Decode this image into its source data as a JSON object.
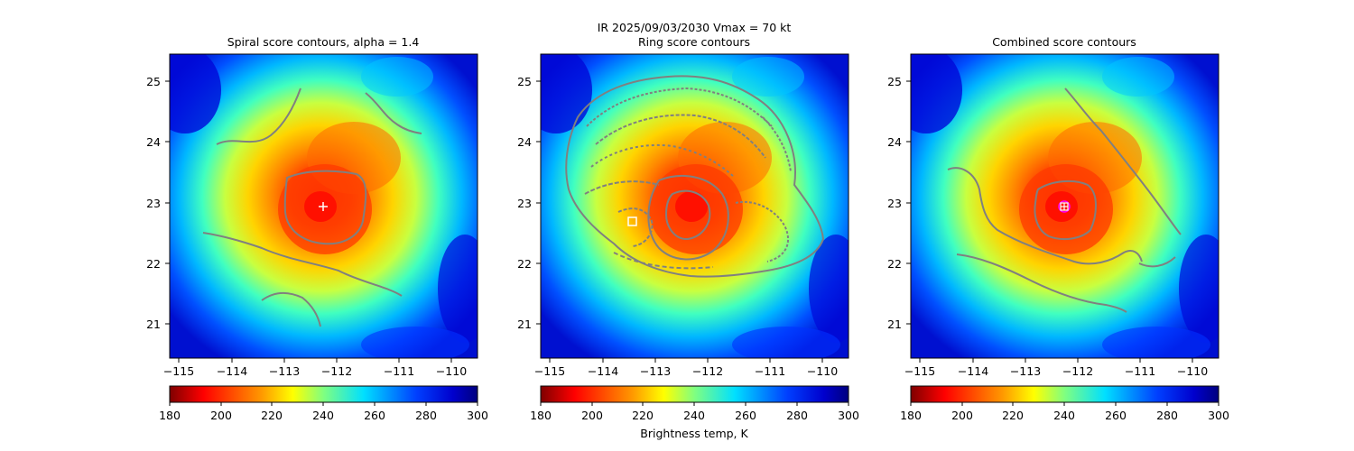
{
  "figure": {
    "suptitle": "IR  2025/09/03/2030    Vmax = 70 kt",
    "colorbar_label": "Brightness temp, K"
  },
  "chart_data": [
    {
      "type": "heatmap",
      "title": "Spiral score contours, alpha =  1.4",
      "xlim": [
        -115.2,
        -109.7
      ],
      "ylim": [
        20.4,
        25.45
      ],
      "xticks": [
        "−115",
        "−114",
        "−113",
        "−112",
        "−111",
        "−110"
      ],
      "yticks": [
        "21",
        "22",
        "23",
        "24",
        "25"
      ],
      "colorbar": {
        "vmin": 180,
        "vmax": 300,
        "ticks": [
          "180",
          "200",
          "220",
          "240",
          "260",
          "280",
          "300"
        ],
        "cmap": "jet_r"
      },
      "center_marker": {
        "symbol": "plus",
        "lon": -112.4,
        "lat": 22.9,
        "color": "#ffffff"
      },
      "contour_color": "#808080"
    },
    {
      "type": "heatmap",
      "title": "Ring score contours",
      "xlim": [
        -115.2,
        -109.7
      ],
      "ylim": [
        20.4,
        25.45
      ],
      "xticks": [
        "−115",
        "−114",
        "−113",
        "−112",
        "−111",
        "−110"
      ],
      "yticks": [
        "21",
        "22",
        "23",
        "24",
        "25"
      ],
      "colorbar": {
        "vmin": 180,
        "vmax": 300,
        "ticks": [
          "180",
          "200",
          "220",
          "240",
          "260",
          "280",
          "300"
        ],
        "cmap": "jet_r"
      },
      "center_marker": {
        "symbol": "square",
        "lon": -113.45,
        "lat": 22.68,
        "color": "#ffffff"
      },
      "contour_color": "#808080"
    },
    {
      "type": "heatmap",
      "title": "Combined score contours",
      "xlim": [
        -115.2,
        -109.7
      ],
      "ylim": [
        20.4,
        25.45
      ],
      "xticks": [
        "−115",
        "−114",
        "−113",
        "−112",
        "−111",
        "−110"
      ],
      "yticks": [
        "21",
        "22",
        "23",
        "24",
        "25"
      ],
      "colorbar": {
        "vmin": 180,
        "vmax": 300,
        "ticks": [
          "180",
          "200",
          "220",
          "240",
          "260",
          "280",
          "300"
        ],
        "cmap": "jet_r"
      },
      "center_marker": {
        "symbol": "square-plus",
        "lon": -112.4,
        "lat": 22.92,
        "color": "#ffffff",
        "ring_color": "#ff00ff"
      },
      "contour_color": "#808080"
    }
  ]
}
